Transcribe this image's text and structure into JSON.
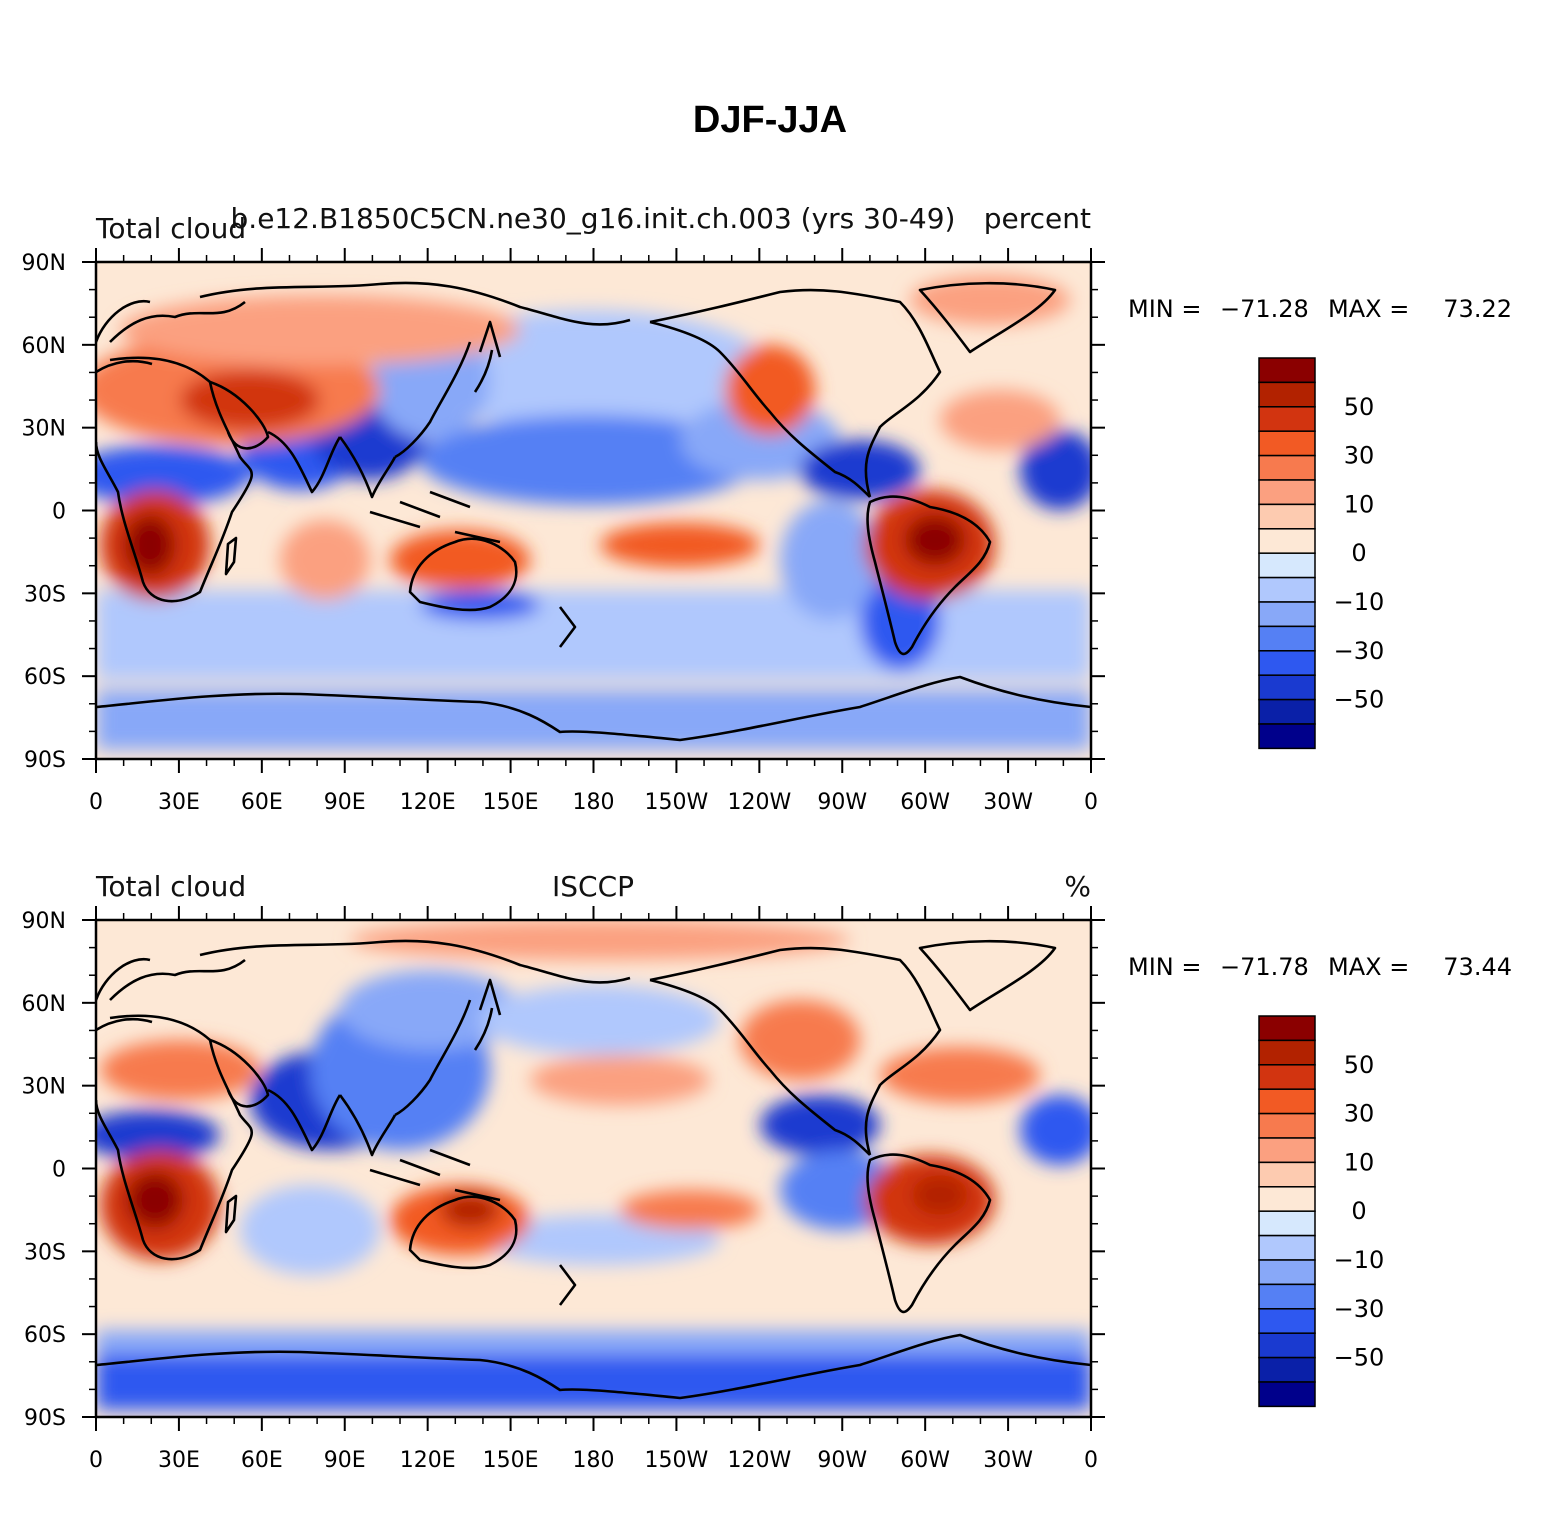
{
  "title": "DJF-JJA",
  "panels": [
    {
      "id": "model",
      "left_label": "Total cloud",
      "center_label": "b.e12.B1850C5CN.ne30_g16.init.ch.003 (yrs 30-49)",
      "right_label": "percent",
      "stats": {
        "min_label": "MIN =",
        "min": "−71.28",
        "max_label": "MAX =",
        "max": "73.22"
      }
    },
    {
      "id": "obs",
      "left_label": "Total cloud",
      "center_label": "ISCCP",
      "right_label": "%",
      "stats": {
        "min_label": "MIN =",
        "min": "−71.78",
        "max_label": "MAX =",
        "max": "73.44"
      }
    }
  ],
  "map": {
    "projection": "cylindrical-equidistant",
    "lon_range": [
      0,
      360
    ],
    "lat_range": [
      -90,
      90
    ],
    "lon_tick_labels": [
      "0",
      "30E",
      "60E",
      "90E",
      "120E",
      "150E",
      "180",
      "150W",
      "120W",
      "90W",
      "60W",
      "30W",
      "0"
    ],
    "lat_tick_labels": [
      "90N",
      "60N",
      "30N",
      "0",
      "30S",
      "60S",
      "90S"
    ]
  },
  "colorbar": {
    "label_values": [
      "50",
      "30",
      "10",
      "0",
      "−10",
      "−30",
      "−50"
    ],
    "levels": [
      -60,
      -50,
      -40,
      -30,
      -20,
      -10,
      -5,
      0,
      5,
      10,
      20,
      30,
      40,
      50,
      60
    ],
    "colors": [
      "#8b0000",
      "#b22200",
      "#d23410",
      "#f25a24",
      "#f77a4e",
      "#fba080",
      "#fdcbb0",
      "#fde8d6",
      "#d6e8fd",
      "#b0c8fd",
      "#88a8f8",
      "#5580f4",
      "#2e58f0",
      "#1a3ad0",
      "#0a20a8",
      "#00008b"
    ]
  },
  "colors": {
    "coastline": "#000000",
    "ocean_background": "#fde8d6"
  }
}
